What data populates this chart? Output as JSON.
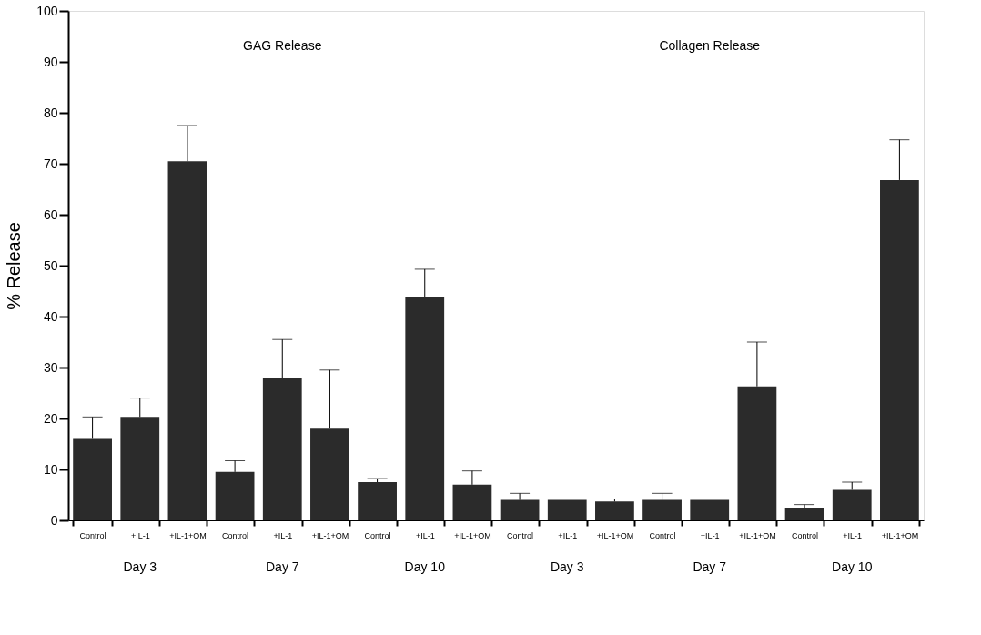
{
  "chart_data": {
    "type": "bar",
    "ylabel": "% Release",
    "categories": [
      "Control",
      "+IL-1",
      "+IL-1+OM",
      "Control",
      "+IL-1",
      "+IL-1+OM",
      "Control",
      "+IL-1",
      "+IL-1+OM",
      "Control",
      "+IL-1",
      "+IL-1+OM",
      "Control",
      "+IL-1",
      "+IL-1+OM",
      "Control",
      "+IL-1",
      "+IL-1+OM"
    ],
    "values": [
      16,
      20.3,
      70.5,
      9.5,
      28,
      18,
      7.5,
      43.8,
      7,
      4,
      4,
      3.7,
      4,
      4,
      26.3,
      2.5,
      6,
      66.8
    ],
    "errors": [
      [
        16,
        20.3
      ],
      [
        20.3,
        24
      ],
      [
        70.5,
        77.5
      ],
      [
        9.5,
        11.7
      ],
      [
        28,
        35.5
      ],
      [
        18,
        29.5
      ],
      [
        7.5,
        8.2
      ],
      [
        43.8,
        49.3
      ],
      [
        7,
        9.7
      ],
      [
        4,
        5.3
      ],
      null,
      [
        3.7,
        4.2
      ],
      [
        4,
        5.3
      ],
      null,
      [
        26.3,
        35
      ],
      [
        2.5,
        3.1
      ],
      [
        6,
        7.5
      ],
      [
        66.8,
        74.7
      ]
    ],
    "color": "#2b2b2b",
    "ylim": [
      0,
      100
    ],
    "yticks": [
      0,
      10,
      20,
      30,
      40,
      50,
      60,
      70,
      80,
      90,
      100
    ],
    "grid": false,
    "annotations": [
      "GAG Release",
      "Collagen Release",
      "Day 3",
      "Day 7",
      "Day 10",
      "Day 3",
      "Day 7",
      "Day 10"
    ]
  }
}
